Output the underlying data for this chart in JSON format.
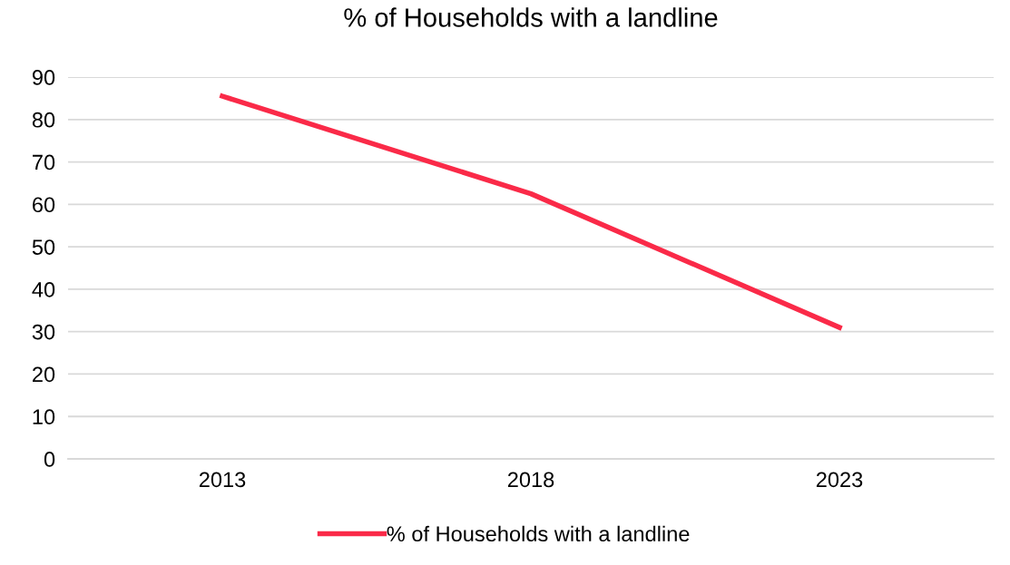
{
  "chart_data": {
    "type": "line",
    "title": "% of Households with a landline",
    "categories": [
      "2013",
      "2018",
      "2023"
    ],
    "series": [
      {
        "name": "% of Households with a landline",
        "color": "#fa2a48",
        "values": [
          85.5,
          62.5,
          31
        ]
      }
    ],
    "ylim": [
      0,
      90
    ],
    "yticks": [
      0,
      10,
      20,
      30,
      40,
      50,
      60,
      70,
      80,
      90
    ],
    "grid": "y",
    "legend": "bottom",
    "marker": "none",
    "line_style": "solid"
  }
}
